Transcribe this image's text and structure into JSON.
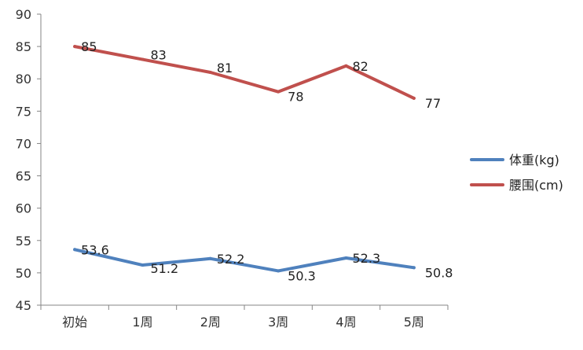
{
  "chart_data": {
    "type": "line",
    "title": "",
    "xlabel": "",
    "ylabel": "",
    "categories": [
      "初始",
      "1周",
      "2周",
      "3周",
      "4周",
      "5周"
    ],
    "ylim": [
      45,
      90
    ],
    "yticks": [
      45,
      50,
      55,
      60,
      65,
      70,
      75,
      80,
      85,
      90
    ],
    "grid": false,
    "legend_position": "right",
    "series": [
      {
        "name": "体重(kg)",
        "color": "#4f81bd",
        "values": [
          53.6,
          51.2,
          52.2,
          50.3,
          52.3,
          50.8
        ],
        "labels": [
          "53.6",
          "51.2",
          "52.2",
          "50.3",
          "52.3",
          "50.8"
        ]
      },
      {
        "name": "腰围(cm)",
        "color": "#c0504d",
        "values": [
          85,
          83,
          81,
          78,
          82,
          77
        ],
        "labels": [
          "85",
          "83",
          "81",
          "78",
          "82",
          "77"
        ]
      }
    ]
  }
}
